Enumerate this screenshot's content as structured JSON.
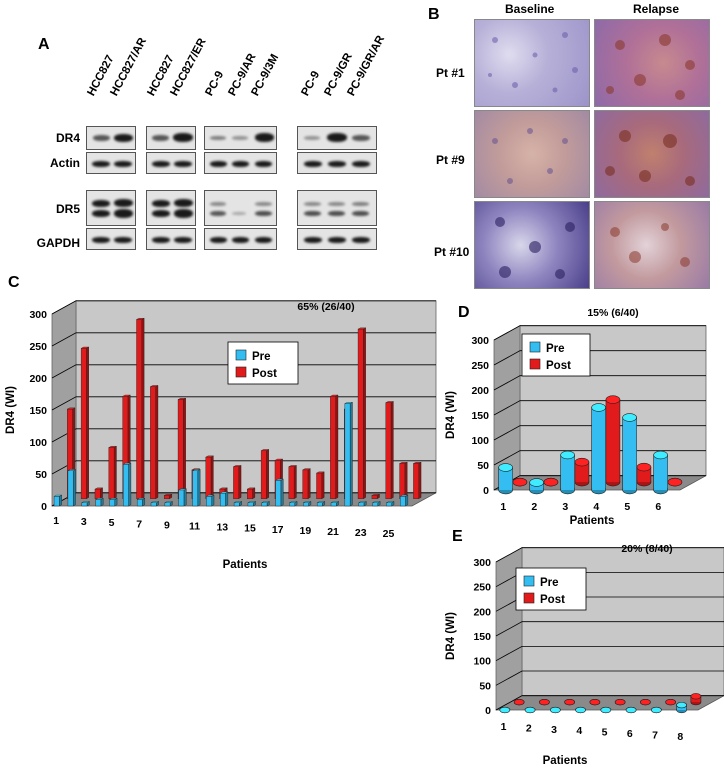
{
  "panels": {
    "A": "A",
    "B": "B",
    "C": "C",
    "D": "D",
    "E": "E"
  },
  "blot": {
    "lanes": [
      "HCC827",
      "HCC827/AR",
      "HCC827",
      "HCC827/ER",
      "PC-9",
      "PC-9/AR",
      "PC-9/3M",
      "PC-9",
      "PC-9/GR",
      "PC-9/GR/AR"
    ],
    "rows": [
      "DR4",
      "Actin",
      "DR5",
      "GAPDH"
    ]
  },
  "ihc": {
    "columns": [
      "Baseline",
      "Relapse"
    ],
    "patients": [
      "Pt #1",
      "Pt #9",
      "Pt #10"
    ]
  },
  "colors": {
    "pre": "#33bdf0",
    "post": "#e11b1b",
    "wall": "#c8c8c8",
    "floor": "#8a8a8a"
  },
  "chart_data": [
    {
      "type": "bar",
      "panel": "C",
      "annotation": "65% (26/40)",
      "xlabel": "Patients",
      "ylabel": "DR4 (WI)",
      "ylim": [
        0,
        300
      ],
      "yticks": [
        0,
        50,
        100,
        150,
        200,
        250,
        300
      ],
      "xticklabels": [
        "1",
        "3",
        "5",
        "7",
        "9",
        "11",
        "13",
        "15",
        "17",
        "19",
        "21",
        "23",
        "25"
      ],
      "categories": [
        1,
        2,
        3,
        4,
        5,
        6,
        7,
        8,
        9,
        10,
        11,
        12,
        13,
        14,
        15,
        16,
        17,
        18,
        19,
        20,
        21,
        22,
        23,
        24,
        25,
        26
      ],
      "series": [
        {
          "name": "Pre",
          "values": [
            15,
            55,
            5,
            10,
            10,
            65,
            10,
            5,
            5,
            25,
            55,
            15,
            20,
            5,
            5,
            5,
            40,
            5,
            5,
            5,
            5,
            160,
            5,
            5,
            5,
            15
          ]
        },
        {
          "name": "Post",
          "values": [
            140,
            235,
            15,
            80,
            160,
            280,
            175,
            5,
            155,
            45,
            65,
            15,
            50,
            15,
            75,
            60,
            50,
            45,
            40,
            160,
            140,
            265,
            5,
            150,
            55,
            55
          ]
        }
      ]
    },
    {
      "type": "bar",
      "panel": "D",
      "annotation": "15% (6/40)",
      "xlabel": "Patients",
      "ylabel": "DR4 (WI)",
      "ylim": [
        0,
        300
      ],
      "yticks": [
        0,
        50,
        100,
        150,
        200,
        250,
        300
      ],
      "categories": [
        "1",
        "2",
        "3",
        "4",
        "5",
        "6"
      ],
      "series": [
        {
          "name": "Pre",
          "values": [
            45,
            15,
            70,
            165,
            145,
            70
          ]
        },
        {
          "name": "Post",
          "values": [
            0,
            0,
            40,
            165,
            30,
            0
          ]
        }
      ]
    },
    {
      "type": "bar",
      "panel": "E",
      "annotation": "20% (8/40)",
      "xlabel": "Patients",
      "ylabel": "DR4 (WI)",
      "ylim": [
        0,
        300
      ],
      "yticks": [
        0,
        50,
        100,
        150,
        200,
        250,
        300
      ],
      "categories": [
        "1",
        "2",
        "3",
        "4",
        "5",
        "6",
        "7",
        "8"
      ],
      "series": [
        {
          "name": "Pre",
          "values": [
            0,
            0,
            0,
            0,
            0,
            0,
            0,
            10
          ]
        },
        {
          "name": "Post",
          "values": [
            0,
            0,
            0,
            0,
            0,
            0,
            0,
            12
          ]
        }
      ]
    }
  ]
}
